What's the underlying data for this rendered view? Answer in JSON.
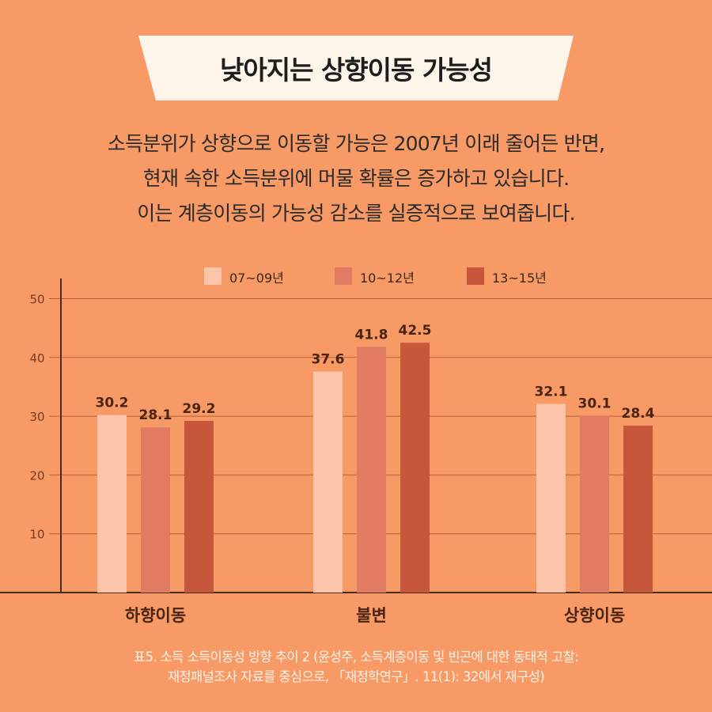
{
  "title": "낮아지는 상향이동 가능성",
  "subtitle_lines": [
    "소득분위가 상향으로 이동할 가능은 2007년 이래 줄어든 반면,",
    "현재 속한 소득분위에 머물 확률은 증가하고 있습니다.",
    "이는 계층이동의 가능성 감소를 실증적으로 보여줍니다."
  ],
  "source_lines": [
    "표5. 소득 소득이동성 방향 추이 2 (윤성주, 소득계층이동 및 빈곤에 대한 동태적 고찰:",
    "재정패널조사 자료를 중심으로, 「재정학연구」. 11(1): 32에서 재구성)"
  ],
  "colors": {
    "background": "#f79a66",
    "banner": "#fdf4ea",
    "gridline": "#b5643a",
    "axis": "#4a2a1a"
  },
  "chart_data": {
    "type": "bar",
    "categories": [
      "하향이동",
      "불변",
      "상향이동"
    ],
    "series": [
      {
        "name": "07~09년",
        "color": "#fcc4a8",
        "values": [
          30.2,
          37.6,
          32.1
        ]
      },
      {
        "name": "10~12년",
        "color": "#e17c62",
        "values": [
          28.1,
          41.8,
          30.1
        ]
      },
      {
        "name": "13~15년",
        "color": "#c7573b",
        "values": [
          29.2,
          42.5,
          28.4
        ]
      }
    ],
    "yticks": [
      10,
      20,
      30,
      40,
      50
    ],
    "ylim": [
      0,
      50
    ],
    "grid": true,
    "legend_position": "top"
  }
}
